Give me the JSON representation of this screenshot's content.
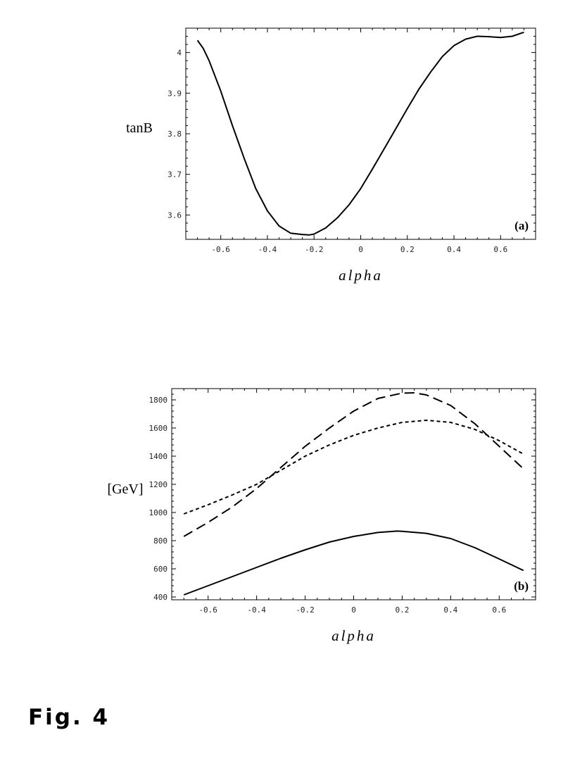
{
  "caption": "Fig. 4",
  "chart_data": [
    {
      "type": "line",
      "panel_label": "(a)",
      "xlabel": "alpha",
      "ylabel": "tanB",
      "xlim": [
        -0.75,
        0.75
      ],
      "ylim": [
        3.54,
        4.06
      ],
      "xticks": [
        -0.6,
        -0.4,
        -0.2,
        0,
        0.2,
        0.4,
        0.6
      ],
      "xtick_labels": [
        "-0.6",
        "-0.4",
        "-0.2",
        "0",
        "0.2",
        "0.4",
        "0.6"
      ],
      "yticks": [
        3.6,
        3.7,
        3.8,
        3.9,
        4.0
      ],
      "ytick_labels": [
        "3.6",
        "3.7",
        "3.8",
        "3.9",
        "4"
      ],
      "grid": false,
      "series": [
        {
          "style": "solid",
          "x": [
            -0.7,
            -0.675,
            -0.65,
            -0.6,
            -0.55,
            -0.5,
            -0.45,
            -0.4,
            -0.35,
            -0.3,
            -0.25,
            -0.22,
            -0.2,
            -0.15,
            -0.1,
            -0.05,
            0,
            0.05,
            0.1,
            0.15,
            0.2,
            0.25,
            0.3,
            0.35,
            0.4,
            0.45,
            0.5,
            0.55,
            0.6,
            0.65,
            0.7
          ],
          "y": [
            4.03,
            4.01,
            3.98,
            3.905,
            3.82,
            3.74,
            3.665,
            3.61,
            3.573,
            3.555,
            3.552,
            3.551,
            3.553,
            3.568,
            3.593,
            3.625,
            3.665,
            3.713,
            3.762,
            3.812,
            3.862,
            3.91,
            3.952,
            3.99,
            4.017,
            4.033,
            4.04,
            4.039,
            4.037,
            4.04,
            4.05
          ]
        }
      ]
    },
    {
      "type": "line",
      "panel_label": "(b)",
      "xlabel": "alpha",
      "ylabel": "[GeV]",
      "xlim": [
        -0.75,
        0.75
      ],
      "ylim": [
        380,
        1880
      ],
      "xticks": [
        -0.6,
        -0.4,
        -0.2,
        0,
        0.2,
        0.4,
        0.6
      ],
      "xtick_labels": [
        "-0.6",
        "-0.4",
        "-0.2",
        "0",
        "0.2",
        "0.4",
        "0.6"
      ],
      "yticks": [
        400,
        600,
        800,
        1000,
        1200,
        1400,
        1600,
        1800
      ],
      "ytick_labels": [
        "400",
        "600",
        "800",
        "1000",
        "1200",
        "1400",
        "1600",
        "1800"
      ],
      "grid": false,
      "series": [
        {
          "style": "solid",
          "x": [
            -0.7,
            -0.6,
            -0.5,
            -0.4,
            -0.3,
            -0.2,
            -0.1,
            0,
            0.1,
            0.18,
            0.2,
            0.3,
            0.4,
            0.5,
            0.6,
            0.7
          ],
          "y": [
            415,
            480,
            545,
            610,
            675,
            735,
            790,
            830,
            858,
            868,
            866,
            852,
            815,
            750,
            670,
            588
          ]
        },
        {
          "style": "dashed",
          "x": [
            -0.7,
            -0.6,
            -0.5,
            -0.4,
            -0.3,
            -0.2,
            -0.1,
            0,
            0.1,
            0.2,
            0.25,
            0.3,
            0.4,
            0.5,
            0.6,
            0.7
          ],
          "y": [
            830,
            930,
            1040,
            1170,
            1320,
            1470,
            1600,
            1720,
            1810,
            1848,
            1850,
            1835,
            1760,
            1630,
            1470,
            1310
          ]
        },
        {
          "style": "dotted",
          "x": [
            -0.7,
            -0.6,
            -0.5,
            -0.4,
            -0.3,
            -0.2,
            -0.1,
            0,
            0.1,
            0.2,
            0.3,
            0.4,
            0.5,
            0.6,
            0.7
          ],
          "y": [
            990,
            1055,
            1125,
            1200,
            1300,
            1400,
            1480,
            1548,
            1600,
            1640,
            1655,
            1640,
            1590,
            1510,
            1415
          ]
        }
      ]
    }
  ]
}
